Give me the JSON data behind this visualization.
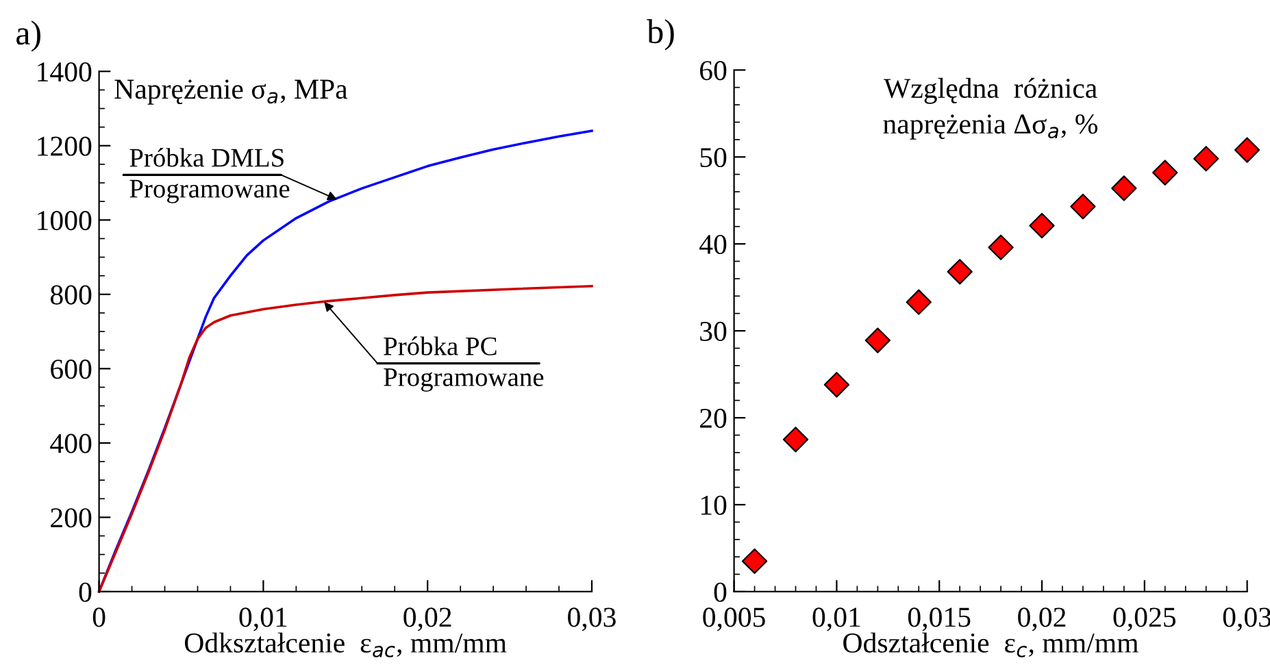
{
  "chart_data": [
    {
      "type": "line",
      "title": "a)",
      "ylabel": "Naprężenie σ$_{a}$, MPa",
      "xlabel": "Odkształcenie  ε$_{ac}$, mm/mm",
      "grid": false,
      "legend": false,
      "marker": "none",
      "line_style": "solid",
      "xlim": [
        0,
        0.03
      ],
      "ylim": [
        0,
        1400
      ],
      "xticks": [
        {
          "value": 0,
          "label": "0"
        },
        {
          "value": 0.002,
          "label": null
        },
        {
          "value": 0.004,
          "label": null
        },
        {
          "value": 0.006,
          "label": null
        },
        {
          "value": 0.008,
          "label": null
        },
        {
          "value": 0.01,
          "label": "0,01"
        },
        {
          "value": 0.012,
          "label": null
        },
        {
          "value": 0.014,
          "label": null
        },
        {
          "value": 0.016,
          "label": null
        },
        {
          "value": 0.018,
          "label": null
        },
        {
          "value": 0.02,
          "label": "0,02"
        },
        {
          "value": 0.022,
          "label": null
        },
        {
          "value": 0.024,
          "label": null
        },
        {
          "value": 0.026,
          "label": null
        },
        {
          "value": 0.028,
          "label": null
        },
        {
          "value": 0.03,
          "label": "0,03"
        }
      ],
      "yticks": [
        0,
        {
          "value": 50,
          "label": null
        },
        {
          "value": 100,
          "label": null
        },
        {
          "value": 150,
          "label": null
        },
        200,
        {
          "value": 250,
          "label": null
        },
        {
          "value": 300,
          "label": null
        },
        {
          "value": 350,
          "label": null
        },
        400,
        {
          "value": 450,
          "label": null
        },
        {
          "value": 500,
          "label": null
        },
        {
          "value": 550,
          "label": null
        },
        600,
        {
          "value": 650,
          "label": null
        },
        {
          "value": 700,
          "label": null
        },
        {
          "value": 750,
          "label": null
        },
        800,
        {
          "value": 850,
          "label": null
        },
        {
          "value": 900,
          "label": null
        },
        {
          "value": 950,
          "label": null
        },
        1000,
        {
          "value": 1050,
          "label": null
        },
        {
          "value": 1100,
          "label": null
        },
        {
          "value": 1150,
          "label": null
        },
        1200,
        {
          "value": 1250,
          "label": null
        },
        {
          "value": 1300,
          "label": null
        },
        {
          "value": 1350,
          "label": null
        },
        1400
      ],
      "series": [
        {
          "color": "#0000ff",
          "x": [
            0,
            0.001,
            0.002,
            0.003,
            0.004,
            0.005,
            0.006,
            0.0065,
            0.007,
            0.008,
            0.009,
            0.01,
            0.012,
            0.014,
            0.016,
            0.018,
            0.02,
            0.022,
            0.024,
            0.026,
            0.028,
            0.03
          ],
          "values": [
            0,
            110,
            215,
            325,
            440,
            560,
            680,
            740,
            790,
            850,
            905,
            945,
            1005,
            1050,
            1085,
            1115,
            1145,
            1168,
            1190,
            1208,
            1225,
            1240
          ]
        },
        {
          "color": "#cc0000",
          "x": [
            0,
            0.001,
            0.002,
            0.003,
            0.004,
            0.005,
            0.0055,
            0.006,
            0.0065,
            0.007,
            0.008,
            0.01,
            0.012,
            0.014,
            0.016,
            0.018,
            0.02,
            0.025,
            0.03
          ],
          "values": [
            0,
            105,
            210,
            320,
            435,
            560,
            630,
            680,
            710,
            725,
            743,
            760,
            772,
            782,
            790,
            798,
            805,
            814,
            822
          ]
        }
      ],
      "annotations": [
        {
          "text": "Próbka DMLS\nProgramowane",
          "x": 0.0145,
          "y": 1055
        },
        {
          "text": "Próbka PC\nProgramowane",
          "x": 0.0137,
          "y": 780
        }
      ]
    },
    {
      "type": "scatter",
      "title": "b)",
      "ylabel": "Względna  różnica\nnaprężenia Δσ$_{a}$, %",
      "xlabel": "Odształcenie  ε$_{c}$, mm/mm",
      "grid": false,
      "legend": false,
      "marker": "diamond",
      "xlim": [
        0.005,
        0.03
      ],
      "ylim": [
        0,
        60
      ],
      "xticks": [
        {
          "value": 0.005,
          "label": "0,005"
        },
        {
          "value": 0.006,
          "label": null
        },
        {
          "value": 0.007,
          "label": null
        },
        {
          "value": 0.008,
          "label": null
        },
        {
          "value": 0.009,
          "label": null
        },
        {
          "value": 0.01,
          "label": "0,01"
        },
        {
          "value": 0.011,
          "label": null
        },
        {
          "value": 0.012,
          "label": null
        },
        {
          "value": 0.013,
          "label": null
        },
        {
          "value": 0.014,
          "label": null
        },
        {
          "value": 0.015,
          "label": "0,015"
        },
        {
          "value": 0.016,
          "label": null
        },
        {
          "value": 0.017,
          "label": null
        },
        {
          "value": 0.018,
          "label": null
        },
        {
          "value": 0.019,
          "label": null
        },
        {
          "value": 0.02,
          "label": "0,02"
        },
        {
          "value": 0.021,
          "label": null
        },
        {
          "value": 0.022,
          "label": null
        },
        {
          "value": 0.023,
          "label": null
        },
        {
          "value": 0.024,
          "label": null
        },
        {
          "value": 0.025,
          "label": "0,025"
        },
        {
          "value": 0.026,
          "label": null
        },
        {
          "value": 0.027,
          "label": null
        },
        {
          "value": 0.028,
          "label": null
        },
        {
          "value": 0.029,
          "label": null
        },
        {
          "value": 0.03,
          "label": "0,03"
        }
      ],
      "yticks": [
        0,
        {
          "value": 2,
          "label": null
        },
        {
          "value": 4,
          "label": null
        },
        {
          "value": 6,
          "label": null
        },
        {
          "value": 8,
          "label": null
        },
        10,
        {
          "value": 12,
          "label": null
        },
        {
          "value": 14,
          "label": null
        },
        {
          "value": 16,
          "label": null
        },
        {
          "value": 18,
          "label": null
        },
        20,
        {
          "value": 22,
          "label": null
        },
        {
          "value": 24,
          "label": null
        },
        {
          "value": 26,
          "label": null
        },
        {
          "value": 28,
          "label": null
        },
        30,
        {
          "value": 32,
          "label": null
        },
        {
          "value": 34,
          "label": null
        },
        {
          "value": 36,
          "label": null
        },
        {
          "value": 38,
          "label": null
        },
        40,
        {
          "value": 42,
          "label": null
        },
        {
          "value": 44,
          "label": null
        },
        {
          "value": 46,
          "label": null
        },
        {
          "value": 48,
          "label": null
        },
        50,
        {
          "value": 52,
          "label": null
        },
        {
          "value": 54,
          "label": null
        },
        {
          "value": 56,
          "label": null
        },
        {
          "value": 58,
          "label": null
        },
        60
      ],
      "series": [
        {
          "color": "#ff0000",
          "x": [
            0.006,
            0.008,
            0.01,
            0.012,
            0.014,
            0.016,
            0.018,
            0.02,
            0.022,
            0.024,
            0.026,
            0.028,
            0.03
          ],
          "values": [
            3.5,
            17.5,
            23.8,
            28.9,
            33.3,
            36.8,
            39.6,
            42.1,
            44.3,
            46.4,
            48.2,
            49.8,
            50.8
          ]
        }
      ]
    }
  ]
}
